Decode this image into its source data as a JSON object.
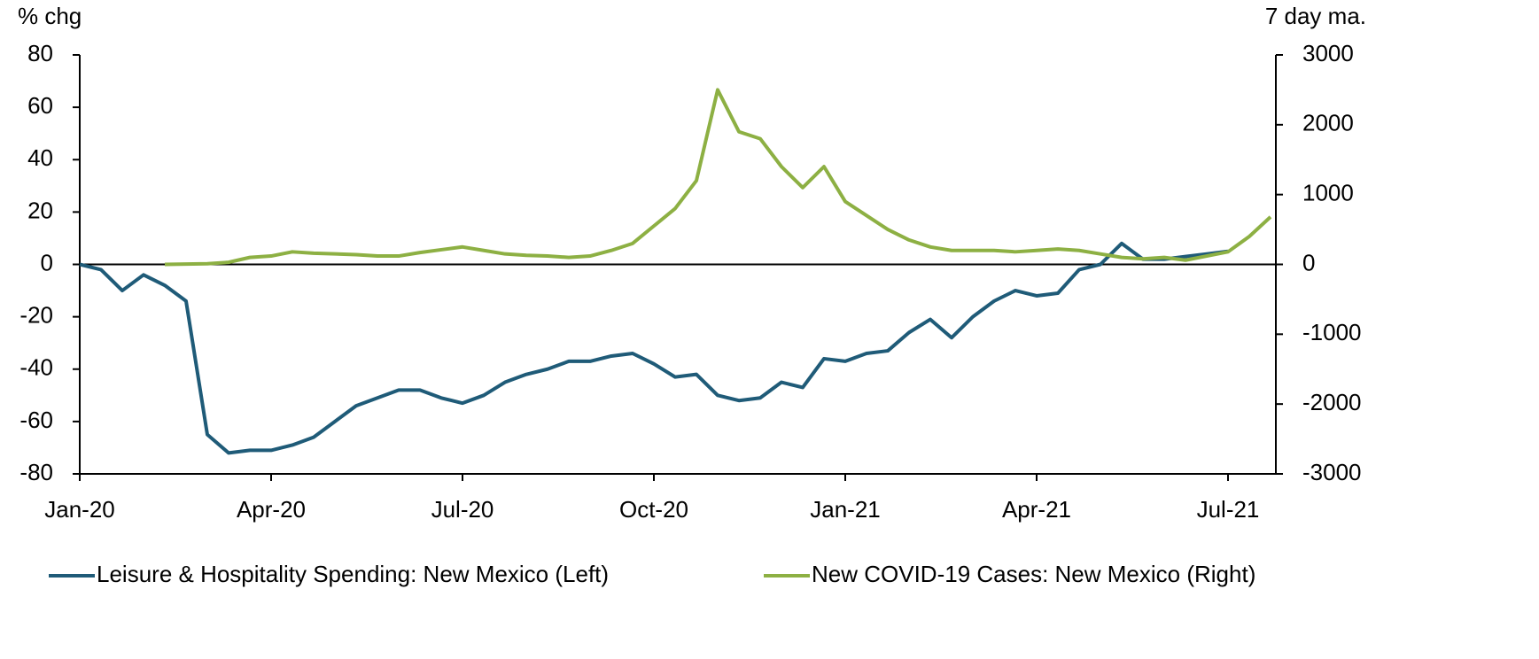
{
  "chart_data": {
    "type": "line",
    "y_label": "% chg",
    "y2_label": "7 day ma.",
    "categories": [
      "Jan-20",
      null,
      null,
      null,
      null,
      null,
      null,
      null,
      null,
      "Apr-20",
      null,
      null,
      null,
      null,
      null,
      null,
      null,
      null,
      "Jul-20",
      null,
      null,
      null,
      null,
      null,
      null,
      null,
      null,
      "Oct-20",
      null,
      null,
      null,
      null,
      null,
      null,
      null,
      null,
      "Jan-21",
      null,
      null,
      null,
      null,
      null,
      null,
      null,
      null,
      "Apr-21",
      null,
      null,
      null,
      null,
      null,
      null,
      null,
      null,
      "Jul-21",
      null,
      null
    ],
    "series": [
      {
        "name": "Leisure & Hospitality Spending: New Mexico (Left)",
        "color": "#1f5b78",
        "axis": "y",
        "values": [
          0,
          -2,
          -10,
          -4,
          -8,
          -14,
          -65,
          -72,
          -71,
          -71,
          -69,
          -66,
          -60,
          -54,
          -51,
          -48,
          -48,
          -51,
          -53,
          -50,
          -45,
          -42,
          -40,
          -37,
          -37,
          -35,
          -34,
          -38,
          -43,
          -42,
          -50,
          -52,
          -51,
          -45,
          -47,
          -36,
          -37,
          -34,
          -33,
          -26,
          -21,
          -28,
          -20,
          -14,
          -10,
          -12,
          -11,
          -2,
          0,
          8,
          2,
          2,
          3,
          4,
          5,
          null,
          null
        ]
      },
      {
        "name": "New COVID-19 Cases: New Mexico (Right)",
        "color": "#8db043",
        "axis": "y2",
        "values": [
          null,
          null,
          null,
          null,
          0,
          5,
          10,
          30,
          100,
          120,
          180,
          160,
          150,
          140,
          120,
          120,
          170,
          210,
          250,
          200,
          150,
          130,
          120,
          100,
          120,
          200,
          300,
          550,
          800,
          1200,
          2500,
          1900,
          1800,
          1400,
          1100,
          1400,
          900,
          700,
          500,
          350,
          250,
          200,
          200,
          200,
          180,
          200,
          220,
          200,
          150,
          100,
          80,
          100,
          60,
          120,
          180,
          400,
          680
        ]
      }
    ],
    "ylim": [
      -80,
      80
    ],
    "yticks": [
      -80,
      -60,
      -40,
      -20,
      0,
      20,
      40,
      60,
      80
    ],
    "y2lim": [
      -3000,
      3000
    ],
    "y2ticks": [
      -3000,
      -2000,
      -1000,
      0,
      1000,
      2000,
      3000
    ]
  }
}
